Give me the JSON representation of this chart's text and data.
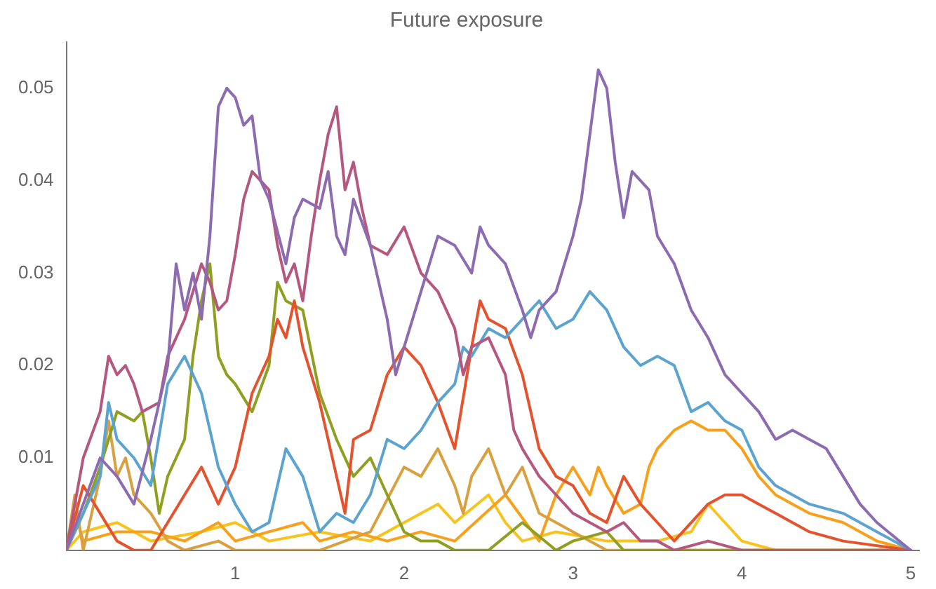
{
  "chart_data": {
    "type": "line",
    "title": "Future exposure",
    "xlim": [
      0,
      5.05
    ],
    "ylim": [
      0,
      0.055
    ],
    "xticks": [
      1,
      2,
      3,
      4,
      5
    ],
    "yticks": [
      0.01,
      0.02,
      0.03,
      0.04,
      0.05
    ],
    "grid": false,
    "legend": false,
    "marker": "none",
    "line_style": "solid",
    "series": [
      {
        "color": "#8c6bb1",
        "x": [
          0,
          0.1,
          0.2,
          0.3,
          0.4,
          0.5,
          0.6,
          0.65,
          0.7,
          0.75,
          0.8,
          0.85,
          0.9,
          0.95,
          1.0,
          1.05,
          1.1,
          1.15,
          1.2,
          1.3,
          1.35,
          1.4,
          1.5,
          1.55,
          1.6,
          1.65,
          1.7,
          1.8,
          1.9,
          1.95,
          2.0,
          2.1,
          2.2,
          2.3,
          2.4,
          2.45,
          2.5,
          2.6,
          2.7,
          2.75,
          2.8,
          2.9,
          3.0,
          3.05,
          3.1,
          3.15,
          3.2,
          3.25,
          3.3,
          3.35,
          3.45,
          3.5,
          3.6,
          3.7,
          3.8,
          3.9,
          4.0,
          4.1,
          4.2,
          4.3,
          4.4,
          4.5,
          4.6,
          4.7,
          4.8,
          5.0
        ],
        "values": [
          0,
          0.005,
          0.01,
          0.008,
          0.005,
          0.012,
          0.02,
          0.031,
          0.026,
          0.03,
          0.025,
          0.034,
          0.048,
          0.05,
          0.049,
          0.046,
          0.047,
          0.04,
          0.038,
          0.031,
          0.036,
          0.038,
          0.037,
          0.041,
          0.034,
          0.032,
          0.038,
          0.033,
          0.025,
          0.019,
          0.022,
          0.028,
          0.034,
          0.033,
          0.03,
          0.035,
          0.033,
          0.031,
          0.026,
          0.023,
          0.026,
          0.028,
          0.034,
          0.038,
          0.045,
          0.052,
          0.05,
          0.042,
          0.036,
          0.041,
          0.039,
          0.034,
          0.031,
          0.026,
          0.023,
          0.019,
          0.017,
          0.015,
          0.012,
          0.013,
          0.012,
          0.011,
          0.008,
          0.005,
          0.003,
          0
        ]
      },
      {
        "color": "#b5577f",
        "x": [
          0,
          0.1,
          0.2,
          0.25,
          0.3,
          0.35,
          0.4,
          0.45,
          0.55,
          0.6,
          0.7,
          0.8,
          0.85,
          0.9,
          0.95,
          1.0,
          1.05,
          1.1,
          1.2,
          1.25,
          1.3,
          1.35,
          1.4,
          1.45,
          1.5,
          1.55,
          1.6,
          1.65,
          1.7,
          1.75,
          1.8,
          1.9,
          2.0,
          2.1,
          2.2,
          2.3,
          2.35,
          2.4,
          2.5,
          2.6,
          2.65,
          2.7,
          2.8,
          2.9,
          3.0,
          3.1,
          3.2,
          3.3,
          3.4,
          3.5,
          3.6,
          3.8,
          4.0,
          5.0
        ],
        "values": [
          0,
          0.01,
          0.015,
          0.021,
          0.019,
          0.02,
          0.018,
          0.015,
          0.016,
          0.021,
          0.025,
          0.031,
          0.029,
          0.026,
          0.027,
          0.032,
          0.038,
          0.041,
          0.039,
          0.033,
          0.029,
          0.031,
          0.027,
          0.034,
          0.04,
          0.045,
          0.048,
          0.039,
          0.042,
          0.037,
          0.033,
          0.032,
          0.035,
          0.03,
          0.028,
          0.024,
          0.019,
          0.022,
          0.023,
          0.019,
          0.013,
          0.011,
          0.008,
          0.006,
          0.004,
          0.003,
          0.002,
          0.003,
          0.001,
          0.001,
          0,
          0.001,
          0,
          0
        ]
      },
      {
        "color": "#5ba3d0",
        "x": [
          0,
          0.1,
          0.2,
          0.25,
          0.3,
          0.4,
          0.5,
          0.6,
          0.7,
          0.8,
          0.9,
          1.0,
          1.1,
          1.2,
          1.3,
          1.4,
          1.5,
          1.6,
          1.7,
          1.8,
          1.9,
          2.0,
          2.1,
          2.2,
          2.3,
          2.35,
          2.4,
          2.5,
          2.6,
          2.7,
          2.8,
          2.9,
          3.0,
          3.1,
          3.2,
          3.3,
          3.4,
          3.5,
          3.6,
          3.7,
          3.8,
          3.9,
          4.0,
          4.1,
          4.2,
          4.3,
          4.4,
          4.6,
          4.8,
          5.0
        ],
        "values": [
          0,
          0.004,
          0.008,
          0.016,
          0.012,
          0.01,
          0.007,
          0.018,
          0.021,
          0.017,
          0.009,
          0.005,
          0.002,
          0.003,
          0.011,
          0.008,
          0.002,
          0.004,
          0.003,
          0.006,
          0.012,
          0.011,
          0.013,
          0.016,
          0.018,
          0.022,
          0.021,
          0.024,
          0.023,
          0.025,
          0.027,
          0.024,
          0.025,
          0.028,
          0.026,
          0.022,
          0.02,
          0.021,
          0.02,
          0.015,
          0.016,
          0.014,
          0.013,
          0.009,
          0.007,
          0.006,
          0.005,
          0.004,
          0.002,
          0
        ]
      },
      {
        "color": "#e4522e",
        "x": [
          0,
          0.1,
          0.2,
          0.3,
          0.4,
          0.5,
          0.6,
          0.7,
          0.8,
          0.9,
          1.0,
          1.1,
          1.2,
          1.25,
          1.3,
          1.35,
          1.4,
          1.5,
          1.6,
          1.65,
          1.7,
          1.8,
          1.9,
          2.0,
          2.1,
          2.2,
          2.3,
          2.4,
          2.45,
          2.5,
          2.6,
          2.7,
          2.8,
          2.9,
          3.0,
          3.1,
          3.2,
          3.3,
          3.4,
          3.5,
          3.6,
          3.8,
          3.9,
          4.0,
          4.1,
          4.2,
          4.4,
          4.6,
          5.0
        ],
        "values": [
          0,
          0.007,
          0.004,
          0.001,
          0,
          0,
          0.003,
          0.006,
          0.009,
          0.005,
          0.009,
          0.017,
          0.021,
          0.025,
          0.023,
          0.027,
          0.022,
          0.016,
          0.008,
          0.004,
          0.012,
          0.013,
          0.019,
          0.022,
          0.02,
          0.016,
          0.011,
          0.022,
          0.027,
          0.025,
          0.024,
          0.019,
          0.011,
          0.008,
          0.007,
          0.004,
          0.003,
          0.008,
          0.005,
          0.003,
          0.001,
          0.005,
          0.006,
          0.006,
          0.005,
          0.004,
          0.002,
          0.001,
          0
        ]
      },
      {
        "color": "#8f9f20",
        "x": [
          0,
          0.1,
          0.2,
          0.3,
          0.4,
          0.45,
          0.5,
          0.55,
          0.6,
          0.7,
          0.75,
          0.8,
          0.85,
          0.9,
          0.95,
          1.0,
          1.1,
          1.2,
          1.25,
          1.3,
          1.4,
          1.5,
          1.6,
          1.7,
          1.8,
          1.9,
          2.0,
          2.1,
          2.2,
          2.3,
          2.5,
          2.7,
          2.9,
          3.0,
          3.2,
          3.3,
          3.5,
          5.0
        ],
        "values": [
          0,
          0.004,
          0.009,
          0.015,
          0.014,
          0.015,
          0.01,
          0.004,
          0.008,
          0.012,
          0.021,
          0.027,
          0.031,
          0.021,
          0.019,
          0.018,
          0.015,
          0.02,
          0.029,
          0.027,
          0.026,
          0.017,
          0.012,
          0.008,
          0.01,
          0.006,
          0.002,
          0.001,
          0.001,
          0,
          0,
          0.003,
          0,
          0.001,
          0.002,
          0,
          0,
          0
        ]
      },
      {
        "color": "#d9a040",
        "x": [
          0,
          0.05,
          0.1,
          0.2,
          0.25,
          0.3,
          0.35,
          0.4,
          0.5,
          0.6,
          0.7,
          0.9,
          1.0,
          1.5,
          1.8,
          2.0,
          2.1,
          2.2,
          2.3,
          2.35,
          2.4,
          2.5,
          2.6,
          2.7,
          2.8,
          2.9,
          3.0,
          3.2,
          5.0
        ],
        "values": [
          0,
          0.006,
          0,
          0.008,
          0.014,
          0.008,
          0.01,
          0.006,
          0.004,
          0.001,
          0,
          0.001,
          0,
          0,
          0.002,
          0.009,
          0.008,
          0.011,
          0.007,
          0.004,
          0.008,
          0.011,
          0.006,
          0.009,
          0.004,
          0.003,
          0.002,
          0,
          0
        ]
      },
      {
        "color": "#f9a01b",
        "x": [
          0,
          0.05,
          0.1,
          0.3,
          0.5,
          0.7,
          0.9,
          1.0,
          1.2,
          1.4,
          1.5,
          1.7,
          1.9,
          2.1,
          2.3,
          2.6,
          2.8,
          2.9,
          3.0,
          3.1,
          3.15,
          3.2,
          3.3,
          3.4,
          3.45,
          3.5,
          3.6,
          3.7,
          3.8,
          3.9,
          4.0,
          4.1,
          4.2,
          4.3,
          4.4,
          4.6,
          4.8,
          5.0
        ],
        "values": [
          0,
          0.004,
          0.001,
          0.002,
          0.002,
          0.001,
          0.003,
          0.001,
          0.002,
          0.003,
          0.001,
          0.002,
          0.001,
          0.002,
          0.001,
          0.006,
          0.001,
          0.006,
          0.009,
          0.006,
          0.009,
          0.007,
          0.004,
          0.005,
          0.009,
          0.011,
          0.013,
          0.014,
          0.013,
          0.013,
          0.011,
          0.008,
          0.006,
          0.005,
          0.004,
          0.003,
          0.001,
          0
        ]
      },
      {
        "color": "#f7c31c",
        "x": [
          0,
          0.1,
          0.3,
          0.5,
          0.8,
          1.0,
          1.2,
          1.5,
          1.8,
          2.0,
          2.2,
          2.3,
          2.5,
          2.6,
          2.7,
          2.9,
          3.2,
          3.5,
          3.7,
          3.8,
          3.9,
          4.0,
          4.2,
          5.0
        ],
        "values": [
          0,
          0.002,
          0.003,
          0.001,
          0.002,
          0.003,
          0.001,
          0.002,
          0.001,
          0.003,
          0.005,
          0.003,
          0.006,
          0.003,
          0.001,
          0.002,
          0.001,
          0.001,
          0.002,
          0.005,
          0.003,
          0.001,
          0,
          0
        ]
      }
    ]
  }
}
